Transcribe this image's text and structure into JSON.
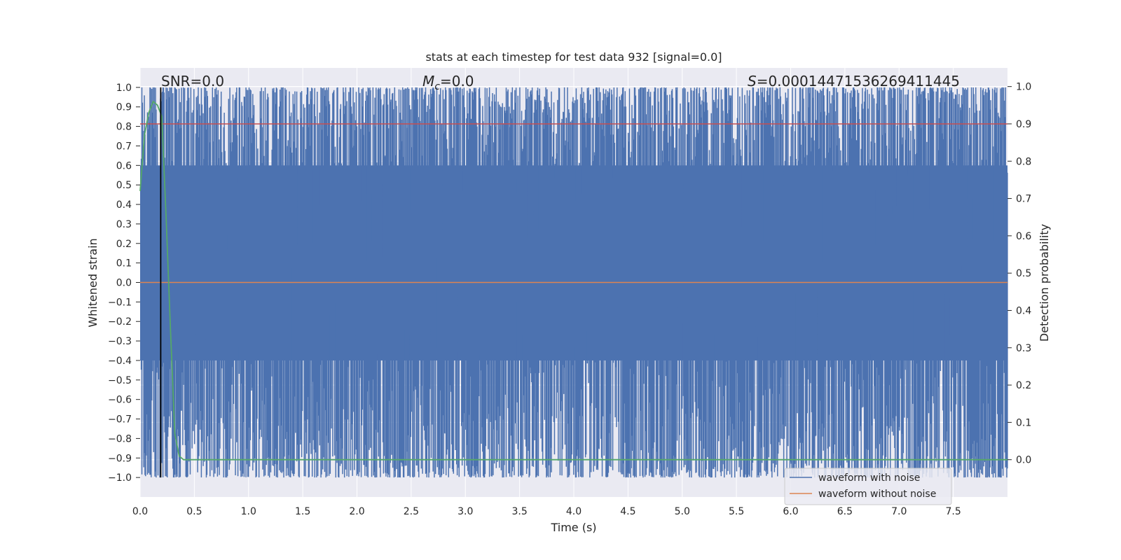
{
  "chart_data": {
    "type": "line",
    "title": "stats at each timestep for test data 932 [signal=0.0]",
    "xlabel": "Time (s)",
    "ylabel": "Whitened strain",
    "ylabel_right": "Detection probability",
    "xlim": [
      0.0,
      8.0
    ],
    "ylim": [
      -1.1,
      1.1
    ],
    "ylim_right": [
      -0.1,
      1.05
    ],
    "x_ticks": [
      "0.0",
      "0.5",
      "1.0",
      "1.5",
      "2.0",
      "2.5",
      "3.0",
      "3.5",
      "4.0",
      "4.5",
      "5.0",
      "5.5",
      "6.0",
      "6.5",
      "7.0",
      "7.5"
    ],
    "y_ticks": [
      "1.0",
      "0.9",
      "0.8",
      "0.7",
      "0.6",
      "0.5",
      "0.4",
      "0.3",
      "0.2",
      "0.1",
      "0.0",
      "−0.1",
      "−0.2",
      "−0.3",
      "−0.4",
      "−0.5",
      "−0.6",
      "−0.7",
      "−0.8",
      "−0.9",
      "−1.0"
    ],
    "y_right_ticks": [
      "1.0",
      "0.9",
      "0.8",
      "0.7",
      "0.6",
      "0.5",
      "0.4",
      "0.3",
      "0.2",
      "0.1",
      "0.0"
    ],
    "grid": true,
    "legend_placement": "lower-right",
    "annotations": {
      "snr": "SNR=0.0",
      "mc_symbol": "M",
      "mc_sub": "c",
      "mc_value": "=0.0",
      "s_symbol": "S",
      "s_value": "=0.00014471536269411445"
    },
    "series": [
      {
        "name": "waveform with noise",
        "color": "#4c72b0",
        "envelope": [
          -1.0,
          1.0
        ]
      },
      {
        "name": "waveform without noise",
        "color": "#dd8452",
        "values_y": 0.0
      }
    ],
    "detection_probability": {
      "color": "#55a868",
      "x": [
        0.0,
        0.04,
        0.08,
        0.12,
        0.16,
        0.2,
        0.24,
        0.28,
        0.32,
        0.36,
        0.4,
        8.0
      ],
      "y": [
        0.72,
        0.87,
        0.93,
        0.96,
        0.95,
        0.92,
        0.65,
        0.35,
        0.07,
        0.01,
        0.0,
        0.0
      ]
    },
    "threshold": {
      "value": 0.9,
      "color": "#c44e52"
    },
    "vertical_marker": {
      "x": 0.19,
      "color": "#000000"
    },
    "colors": {
      "background": "#eaeaf2",
      "grid": "#ffffff",
      "text": "#262626"
    }
  }
}
